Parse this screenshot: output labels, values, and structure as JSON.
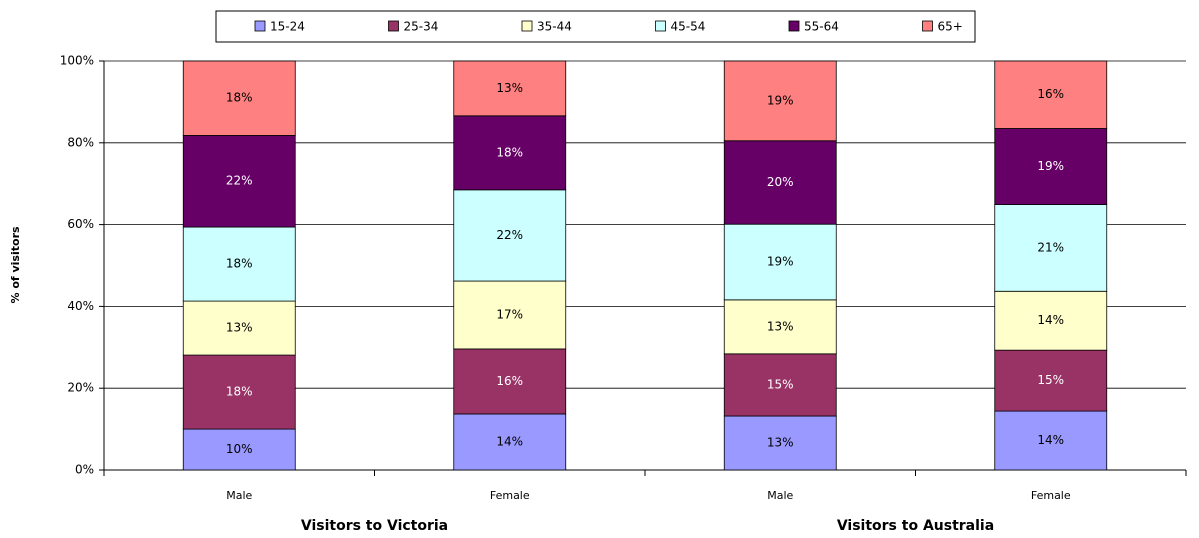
{
  "chart_data": {
    "type": "stacked_bar",
    "ylabel": "% of visitors",
    "categories": [
      "Male",
      "Female",
      "Male",
      "Female"
    ],
    "group_labels": [
      "Visitors to Victoria",
      "Visitors to Australia"
    ],
    "ylim": [
      0,
      100
    ],
    "yticks": [
      {
        "value": 0,
        "label": "0%"
      },
      {
        "value": 20,
        "label": "20%"
      },
      {
        "value": 40,
        "label": "40%"
      },
      {
        "value": 60,
        "label": "60%"
      },
      {
        "value": 80,
        "label": "80%"
      },
      {
        "value": 100,
        "label": "100%"
      }
    ],
    "grid": true,
    "legend": "top",
    "series": [
      {
        "name": "15-24",
        "color": "#9999ff",
        "values": [
          10.0,
          13.7,
          13.2,
          14.4
        ],
        "value_labels": [
          "10%",
          "14%",
          "13%",
          "14%"
        ]
      },
      {
        "name": "25-34",
        "color": "#993366",
        "values": [
          18.1,
          15.9,
          15.2,
          14.9
        ],
        "value_labels": [
          "18%",
          "16%",
          "15%",
          "15%"
        ]
      },
      {
        "name": "35-44",
        "color": "#ffffcc",
        "values": [
          13.2,
          16.6,
          13.2,
          14.4
        ],
        "value_labels": [
          "13%",
          "17%",
          "13%",
          "14%"
        ]
      },
      {
        "name": "45-54",
        "color": "#ccffff",
        "values": [
          18.1,
          22.3,
          18.5,
          21.2
        ],
        "value_labels": [
          "18%",
          "22%",
          "19%",
          "21%"
        ]
      },
      {
        "name": "55-64",
        "color": "#660066",
        "values": [
          22.4,
          18.1,
          20.4,
          18.6
        ],
        "value_labels": [
          "22%",
          "18%",
          "20%",
          "19%"
        ]
      },
      {
        "name": "65+",
        "color": "#ff8080",
        "values": [
          18.2,
          13.4,
          19.5,
          16.5
        ],
        "value_labels": [
          "18%",
          "13%",
          "19%",
          "16%"
        ]
      }
    ]
  }
}
